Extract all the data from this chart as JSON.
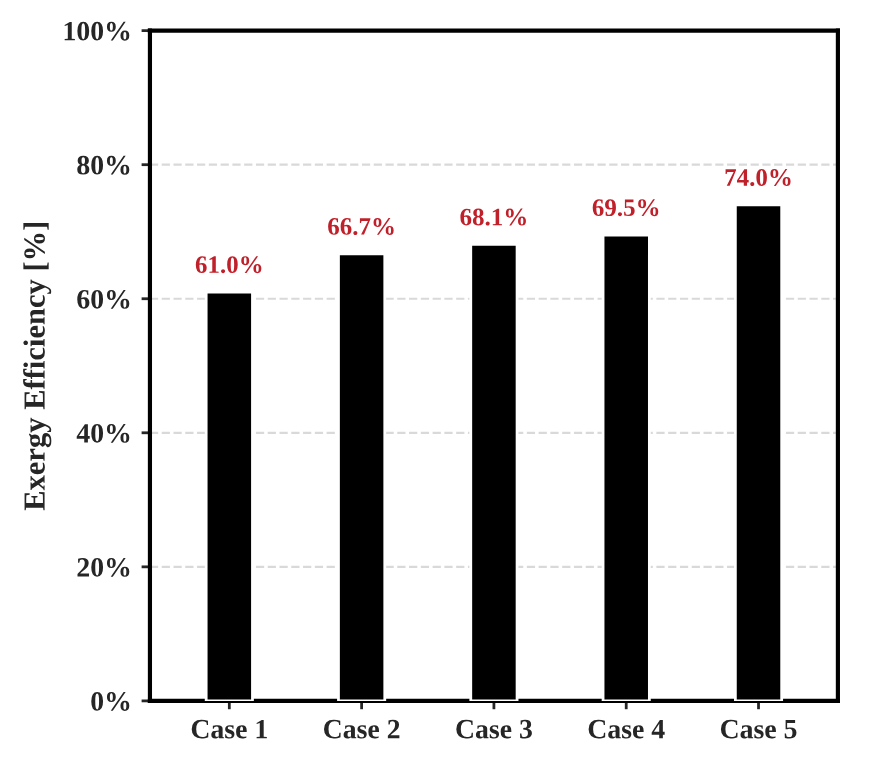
{
  "chart_data": {
    "type": "bar",
    "ylabel": "Exergy Efficiency [%]",
    "categories": [
      "Case 1",
      "Case 2",
      "Case 3",
      "Case 4",
      "Case 5"
    ],
    "values": [
      61.0,
      66.7,
      68.1,
      69.5,
      74.0
    ],
    "value_labels": [
      "61.0%",
      "66.7%",
      "68.1%",
      "69.5%",
      "74.0%"
    ],
    "color": "#000000",
    "ylim": [
      0,
      100
    ],
    "yticks": [
      {
        "value": 0,
        "label": "0%"
      },
      {
        "value": 20,
        "label": "20%"
      },
      {
        "value": 40,
        "label": "40%"
      },
      {
        "value": 60,
        "label": "60%"
      },
      {
        "value": 80,
        "label": "80%"
      },
      {
        "value": 100,
        "label": "100%"
      }
    ],
    "grid": "y",
    "legend": false
  }
}
